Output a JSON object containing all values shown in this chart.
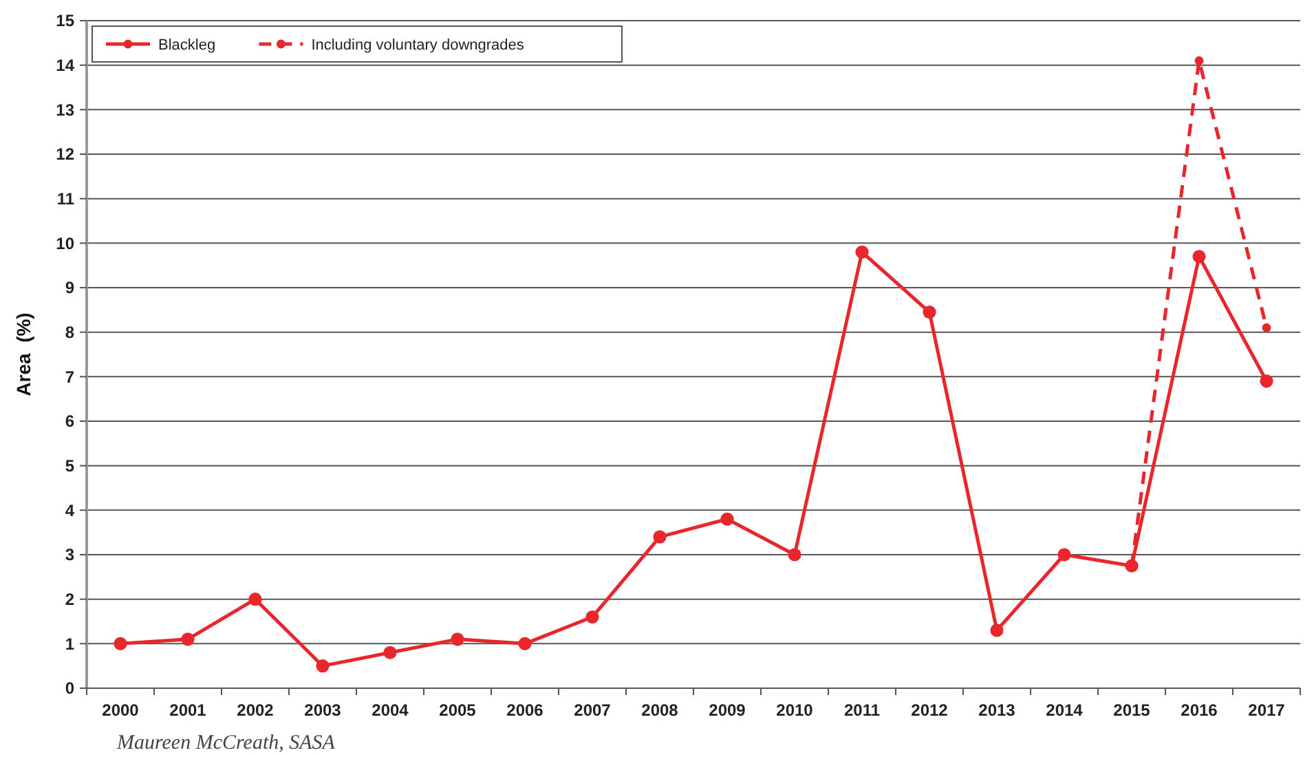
{
  "chart_data": {
    "type": "line",
    "ylabel": "Area  (%)",
    "categories": [
      "2000",
      "2001",
      "2002",
      "2003",
      "2004",
      "2005",
      "2006",
      "2007",
      "2008",
      "2009",
      "2010",
      "2011",
      "2012",
      "2013",
      "2014",
      "2015",
      "2016",
      "2017"
    ],
    "series": [
      {
        "name": "Blackleg",
        "color": "#e8262b",
        "line_style": "solid",
        "values": [
          1.0,
          1.1,
          2.0,
          0.5,
          0.8,
          1.1,
          1.0,
          1.6,
          3.4,
          3.8,
          3.0,
          9.8,
          8.45,
          1.3,
          3.0,
          2.75,
          9.7,
          6.9
        ]
      },
      {
        "name": "Including voluntary downgrades",
        "color": "#e8262b",
        "line_style": "dashed",
        "values": [
          null,
          null,
          null,
          null,
          null,
          null,
          null,
          null,
          null,
          null,
          null,
          null,
          null,
          null,
          null,
          2.75,
          14.1,
          8.1
        ]
      }
    ],
    "ylim": [
      0,
      15
    ],
    "yticks": [
      0,
      1,
      2,
      3,
      4,
      5,
      6,
      7,
      8,
      9,
      10,
      11,
      12,
      13,
      14,
      15
    ],
    "grid": "y",
    "legend": "top left",
    "marker": "circle",
    "annotations": [
      "Maureen McCreath, SASA"
    ]
  }
}
